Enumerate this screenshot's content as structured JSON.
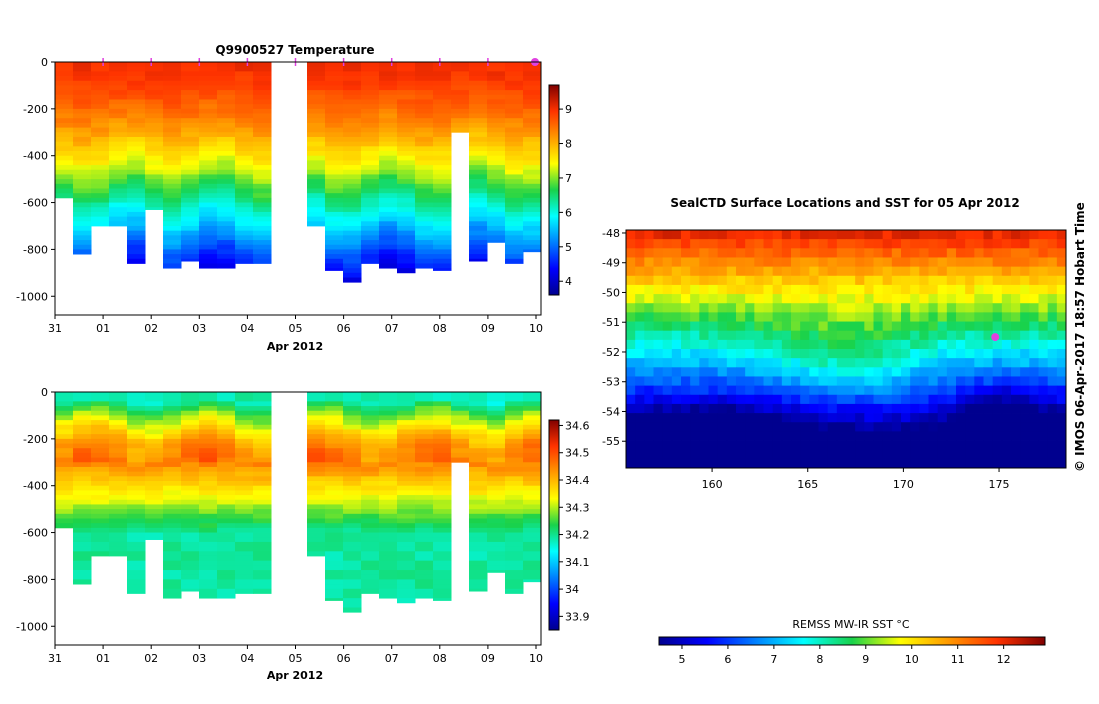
{
  "chart_data": [
    {
      "type": "heatmap",
      "title": "Q9900527  Temperature",
      "xlabel": "Apr 2012",
      "ylabel": "",
      "xticks": [
        "31",
        "01",
        "02",
        "03",
        "04",
        "05",
        "06",
        "07",
        "08",
        "09",
        "10"
      ],
      "yticks": [
        "0",
        "-200",
        "-400",
        "-600",
        "-800",
        "-1000"
      ],
      "ylim": [
        -1080,
        0
      ],
      "colorbar_ticks": [
        "4",
        "5",
        "6",
        "7",
        "8",
        "9"
      ],
      "colorbar_range": [
        3.6,
        9.7
      ],
      "profile_max_depths": [
        580,
        820,
        700,
        700,
        860,
        630,
        880,
        850,
        880,
        880,
        860,
        860,
        0,
        0,
        700,
        890,
        940,
        860,
        880,
        900,
        880,
        890,
        300,
        850,
        770,
        860,
        810
      ],
      "surface_temp": 9.0,
      "deep_temp": 4.3
    },
    {
      "type": "heatmap",
      "title": "",
      "xlabel": "Apr 2012",
      "ylabel": "",
      "xticks": [
        "31",
        "01",
        "02",
        "03",
        "04",
        "05",
        "06",
        "07",
        "08",
        "09",
        "10"
      ],
      "yticks": [
        "0",
        "-200",
        "-400",
        "-600",
        "-800",
        "-1000"
      ],
      "ylim": [
        -1080,
        0
      ],
      "colorbar_ticks": [
        "33.9",
        "34",
        "34.1",
        "34.2",
        "34.3",
        "34.4",
        "34.5",
        "34.6"
      ],
      "colorbar_range": [
        33.85,
        34.62
      ],
      "profile_max_depths": [
        580,
        820,
        700,
        700,
        860,
        630,
        880,
        850,
        880,
        880,
        860,
        860,
        0,
        0,
        700,
        890,
        940,
        860,
        880,
        900,
        880,
        890,
        300,
        850,
        770,
        860,
        810
      ]
    },
    {
      "type": "heatmap",
      "title": "SealCTD Surface Locations and SST for 05 Apr 2012",
      "xlabel": "",
      "ylabel": "",
      "xticks": [
        "160",
        "165",
        "170",
        "175"
      ],
      "yticks": [
        "-48",
        "-49",
        "-50",
        "-51",
        "-52",
        "-53",
        "-54",
        "-55"
      ],
      "xlim": [
        155.5,
        178.5
      ],
      "ylim": [
        -55.9,
        -47.9
      ],
      "colorbar_title": "REMSS MW-IR SST °C",
      "colorbar_ticks": [
        "5",
        "6",
        "7",
        "8",
        "9",
        "10",
        "11",
        "12"
      ],
      "colorbar_range": [
        4.5,
        12.9
      ],
      "highlight_location": [
        174.8,
        -51.5
      ]
    }
  ],
  "copyright": "© IMOS 06-Apr-2017 18:57 Hobart Time",
  "colors": {
    "marker": "#e040e0",
    "frame": "#000000",
    "background": "#ffffff"
  }
}
